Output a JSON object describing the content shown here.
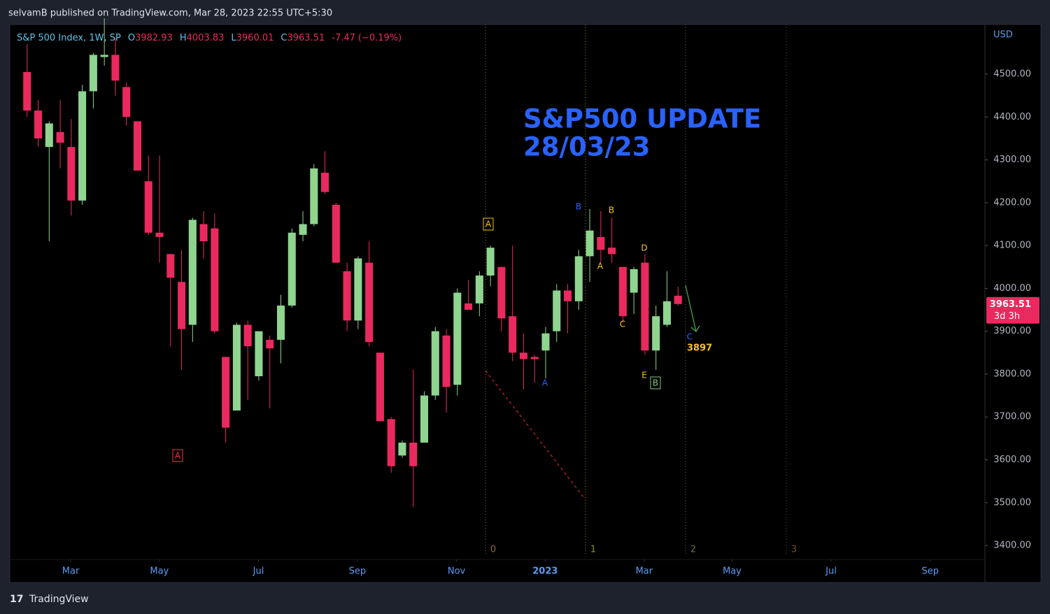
{
  "header": {
    "publisher": "selvamB published on TradingView.com, Mar 28, 2023 22:55 UTC+5:30"
  },
  "footer": {
    "brand": "TradingView"
  },
  "chart_data": {
    "type": "candlestick",
    "title": "S&P 500 Index, 1W, SP",
    "legend": [
      {
        "prefix": "O",
        "value": 3982.93
      },
      {
        "prefix": "H",
        "value": 4003.83
      },
      {
        "prefix": "L",
        "value": 3960.01
      },
      {
        "prefix": "C",
        "value": 3963.51
      }
    ],
    "change": -7.47,
    "change_pct_label": "(−0.19%)",
    "currency": "USD",
    "countdown": "3d 3h",
    "up_color": "#8fd48f",
    "down_color": "#ea2a5e",
    "open": [
      4505,
      4415,
      4330,
      4365,
      4330,
      4205,
      4460,
      4540,
      4545,
      4470,
      4390,
      4250,
      4130,
      4080,
      4015,
      3915,
      4150,
      4140,
      3840,
      3715,
      3915,
      3795,
      3880,
      3880,
      3960,
      4125,
      4150,
      4270,
      4195,
      4040,
      3925,
      4060,
      3850,
      3695,
      3610,
      3640,
      3640,
      3750,
      3890,
      3775,
      3965,
      3965,
      4030,
      4050,
      3935,
      3850,
      3840,
      3855,
      3900,
      3995,
      3970,
      4075,
      4120,
      4095,
      4050,
      3990,
      4060,
      3855,
      3915,
      3982.93
    ],
    "high": [
      4570,
      4440,
      4390,
      4440,
      4395,
      4475,
      4550,
      4630,
      4585,
      4480,
      4390,
      4310,
      4310,
      4080,
      4090,
      4165,
      4180,
      4175,
      3840,
      3920,
      3925,
      3900,
      3890,
      3985,
      4140,
      4180,
      4290,
      4320,
      4200,
      4060,
      4075,
      4110,
      3850,
      3700,
      3645,
      3810,
      3760,
      3910,
      3905,
      4000,
      4020,
      4040,
      4100,
      4050,
      4100,
      3895,
      3845,
      3910,
      4010,
      4010,
      4090,
      4185,
      4180,
      4165,
      4050,
      4050,
      4080,
      3960,
      4040,
      4003.83
    ],
    "low": [
      4400,
      4330,
      4110,
      4280,
      4170,
      4195,
      4420,
      4520,
      4450,
      4380,
      4275,
      4125,
      4060,
      3865,
      3810,
      3875,
      4070,
      3895,
      3640,
      3715,
      3740,
      3785,
      3720,
      3825,
      3955,
      4110,
      4145,
      4220,
      4060,
      3900,
      3905,
      3865,
      3690,
      3570,
      3605,
      3490,
      3640,
      3740,
      3710,
      3750,
      3950,
      3935,
      4005,
      3900,
      3830,
      3765,
      3780,
      3790,
      3875,
      3895,
      3950,
      4015,
      4060,
      4060,
      3920,
      3940,
      3845,
      3810,
      3910,
      3960.01
    ],
    "close": [
      4415,
      4350,
      4385,
      4340,
      4205,
      4460,
      4545,
      4545,
      4485,
      4400,
      4275,
      4130,
      4120,
      4025,
      3905,
      4160,
      4110,
      3900,
      3675,
      3915,
      3865,
      3900,
      3860,
      3960,
      4130,
      4150,
      4280,
      4225,
      4060,
      3925,
      4070,
      3875,
      3690,
      3585,
      3640,
      3585,
      3750,
      3900,
      3770,
      3990,
      3950,
      4030,
      4095,
      3930,
      3850,
      3835,
      3835,
      3895,
      3995,
      3970,
      4075,
      4135,
      4090,
      4080,
      3935,
      4045,
      3855,
      3935,
      3970,
      3963.51
    ],
    "xlim": [
      -1.57,
      86.82
    ],
    "xticks": [
      {
        "value": 3.95,
        "label": "Mar"
      },
      {
        "value": 11.99,
        "label": "May"
      },
      {
        "value": 20.97,
        "label": "Jul"
      },
      {
        "value": 29.94,
        "label": "Sep"
      },
      {
        "value": 38.92,
        "label": "Nov"
      },
      {
        "value": 46.96,
        "label": "2023"
      },
      {
        "value": 55.93,
        "label": "Mar"
      },
      {
        "value": 63.9,
        "label": "May"
      },
      {
        "value": 72.88,
        "label": "Jul"
      },
      {
        "value": 81.86,
        "label": "Sep"
      }
    ],
    "ylim": [
      3367.4,
      4615.9
    ],
    "yticks": [
      {
        "value": 3400,
        "label": "3400.00"
      },
      {
        "value": 3500,
        "label": "3500.00"
      },
      {
        "value": 3600,
        "label": "3600.00"
      },
      {
        "value": 3700,
        "label": "3700.00"
      },
      {
        "value": 3800,
        "label": "3800.00"
      },
      {
        "value": 3900,
        "label": "3900.00"
      },
      {
        "value": 4000,
        "label": "4000.00"
      },
      {
        "value": 4100,
        "label": "4100.00"
      },
      {
        "value": 4200,
        "label": "4200.00"
      },
      {
        "value": 4300,
        "label": "4300.00"
      },
      {
        "value": 4400,
        "label": "4400.00"
      },
      {
        "value": 4500,
        "label": "4500.00"
      }
    ],
    "time_zones": [
      0,
      1,
      2,
      3
    ],
    "headline": [
      "S&P500 UPDATE",
      "28/03/23"
    ],
    "target": 3897,
    "wave_labels": [
      "A",
      "A",
      "B",
      "B",
      "A",
      "C",
      "D",
      "E",
      "B",
      "A",
      "C"
    ]
  }
}
